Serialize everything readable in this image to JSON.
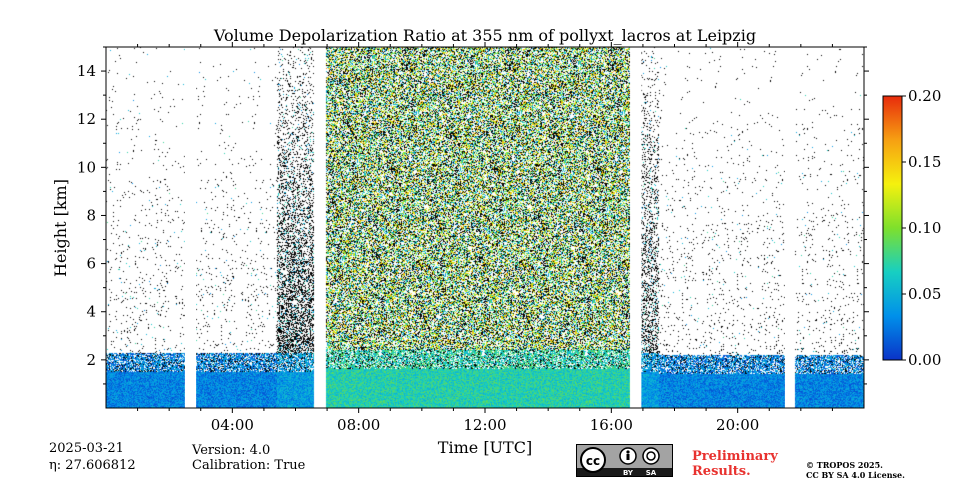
{
  "chart_data": {
    "type": "heatmap",
    "title": "Volume Depolarization Ratio at 355 nm of pollyxt_lacros at Leipzig",
    "xlabel": "Time [UTC]",
    "ylabel": "Height [km]",
    "xlim": [
      0,
      24
    ],
    "ylim": [
      0,
      15
    ],
    "x_ticks": [
      4,
      8,
      12,
      16,
      20
    ],
    "x_tick_labels": [
      "04:00",
      "08:00",
      "12:00",
      "16:00",
      "20:00"
    ],
    "y_ticks": [
      2,
      4,
      6,
      8,
      10,
      12,
      14
    ],
    "y_tick_labels": [
      "2",
      "4",
      "6",
      "8",
      "10",
      "12",
      "14"
    ],
    "colorbar": {
      "range": [
        0.0,
        0.2
      ],
      "ticks": [
        0.0,
        0.05,
        0.1,
        0.15,
        0.2
      ],
      "tick_labels": [
        "0.00",
        "0.05",
        "0.10",
        "0.15",
        "0.20"
      ],
      "colors": [
        "#0a33c8",
        "#0090ea",
        "#17cfc2",
        "#7ee02c",
        "#f5f10e",
        "#f6a012",
        "#e82b0c"
      ]
    },
    "data_gaps_utc": [
      [
        2.5,
        2.85
      ],
      [
        6.6,
        6.95
      ],
      [
        16.6,
        16.95
      ],
      [
        21.5,
        21.8
      ]
    ],
    "regions": [
      {
        "name": "night-early",
        "start": 0.0,
        "end": 5.4,
        "near_surface_top_km": 1.5,
        "near_surface_value": 0.03,
        "upper_density": 0.04
      },
      {
        "name": "dense-strip-1",
        "start": 5.4,
        "end": 6.6,
        "near_surface_top_km": 1.5,
        "near_surface_value": 0.04,
        "upper_density": 0.55
      },
      {
        "name": "daytime",
        "start": 6.95,
        "end": 16.6,
        "near_surface_top_km": 1.6,
        "near_surface_value": 0.07,
        "upper_density": 0.72,
        "upper_value_mean": 0.1
      },
      {
        "name": "dense-strip-2",
        "start": 16.95,
        "end": 17.5,
        "near_surface_top_km": 1.5,
        "near_surface_value": 0.04,
        "upper_density": 0.4
      },
      {
        "name": "night-late",
        "start": 17.5,
        "end": 24.0,
        "near_surface_top_km": 1.4,
        "near_surface_value": 0.03,
        "upper_density": 0.04
      }
    ]
  },
  "footer": {
    "date": "2025-03-21",
    "eta": "η: 27.606812",
    "version": "Version: 4.0",
    "calibration": "Calibration: True",
    "prelim_line1": "Preliminary",
    "prelim_line2": "Results.",
    "copyright_line1": "© TROPOS 2025.",
    "copyright_line2": "CC BY SA 4.0 License.",
    "cc_badge": {
      "icon": "cc-by-sa-icon",
      "by": "BY",
      "sa": "SA"
    }
  }
}
